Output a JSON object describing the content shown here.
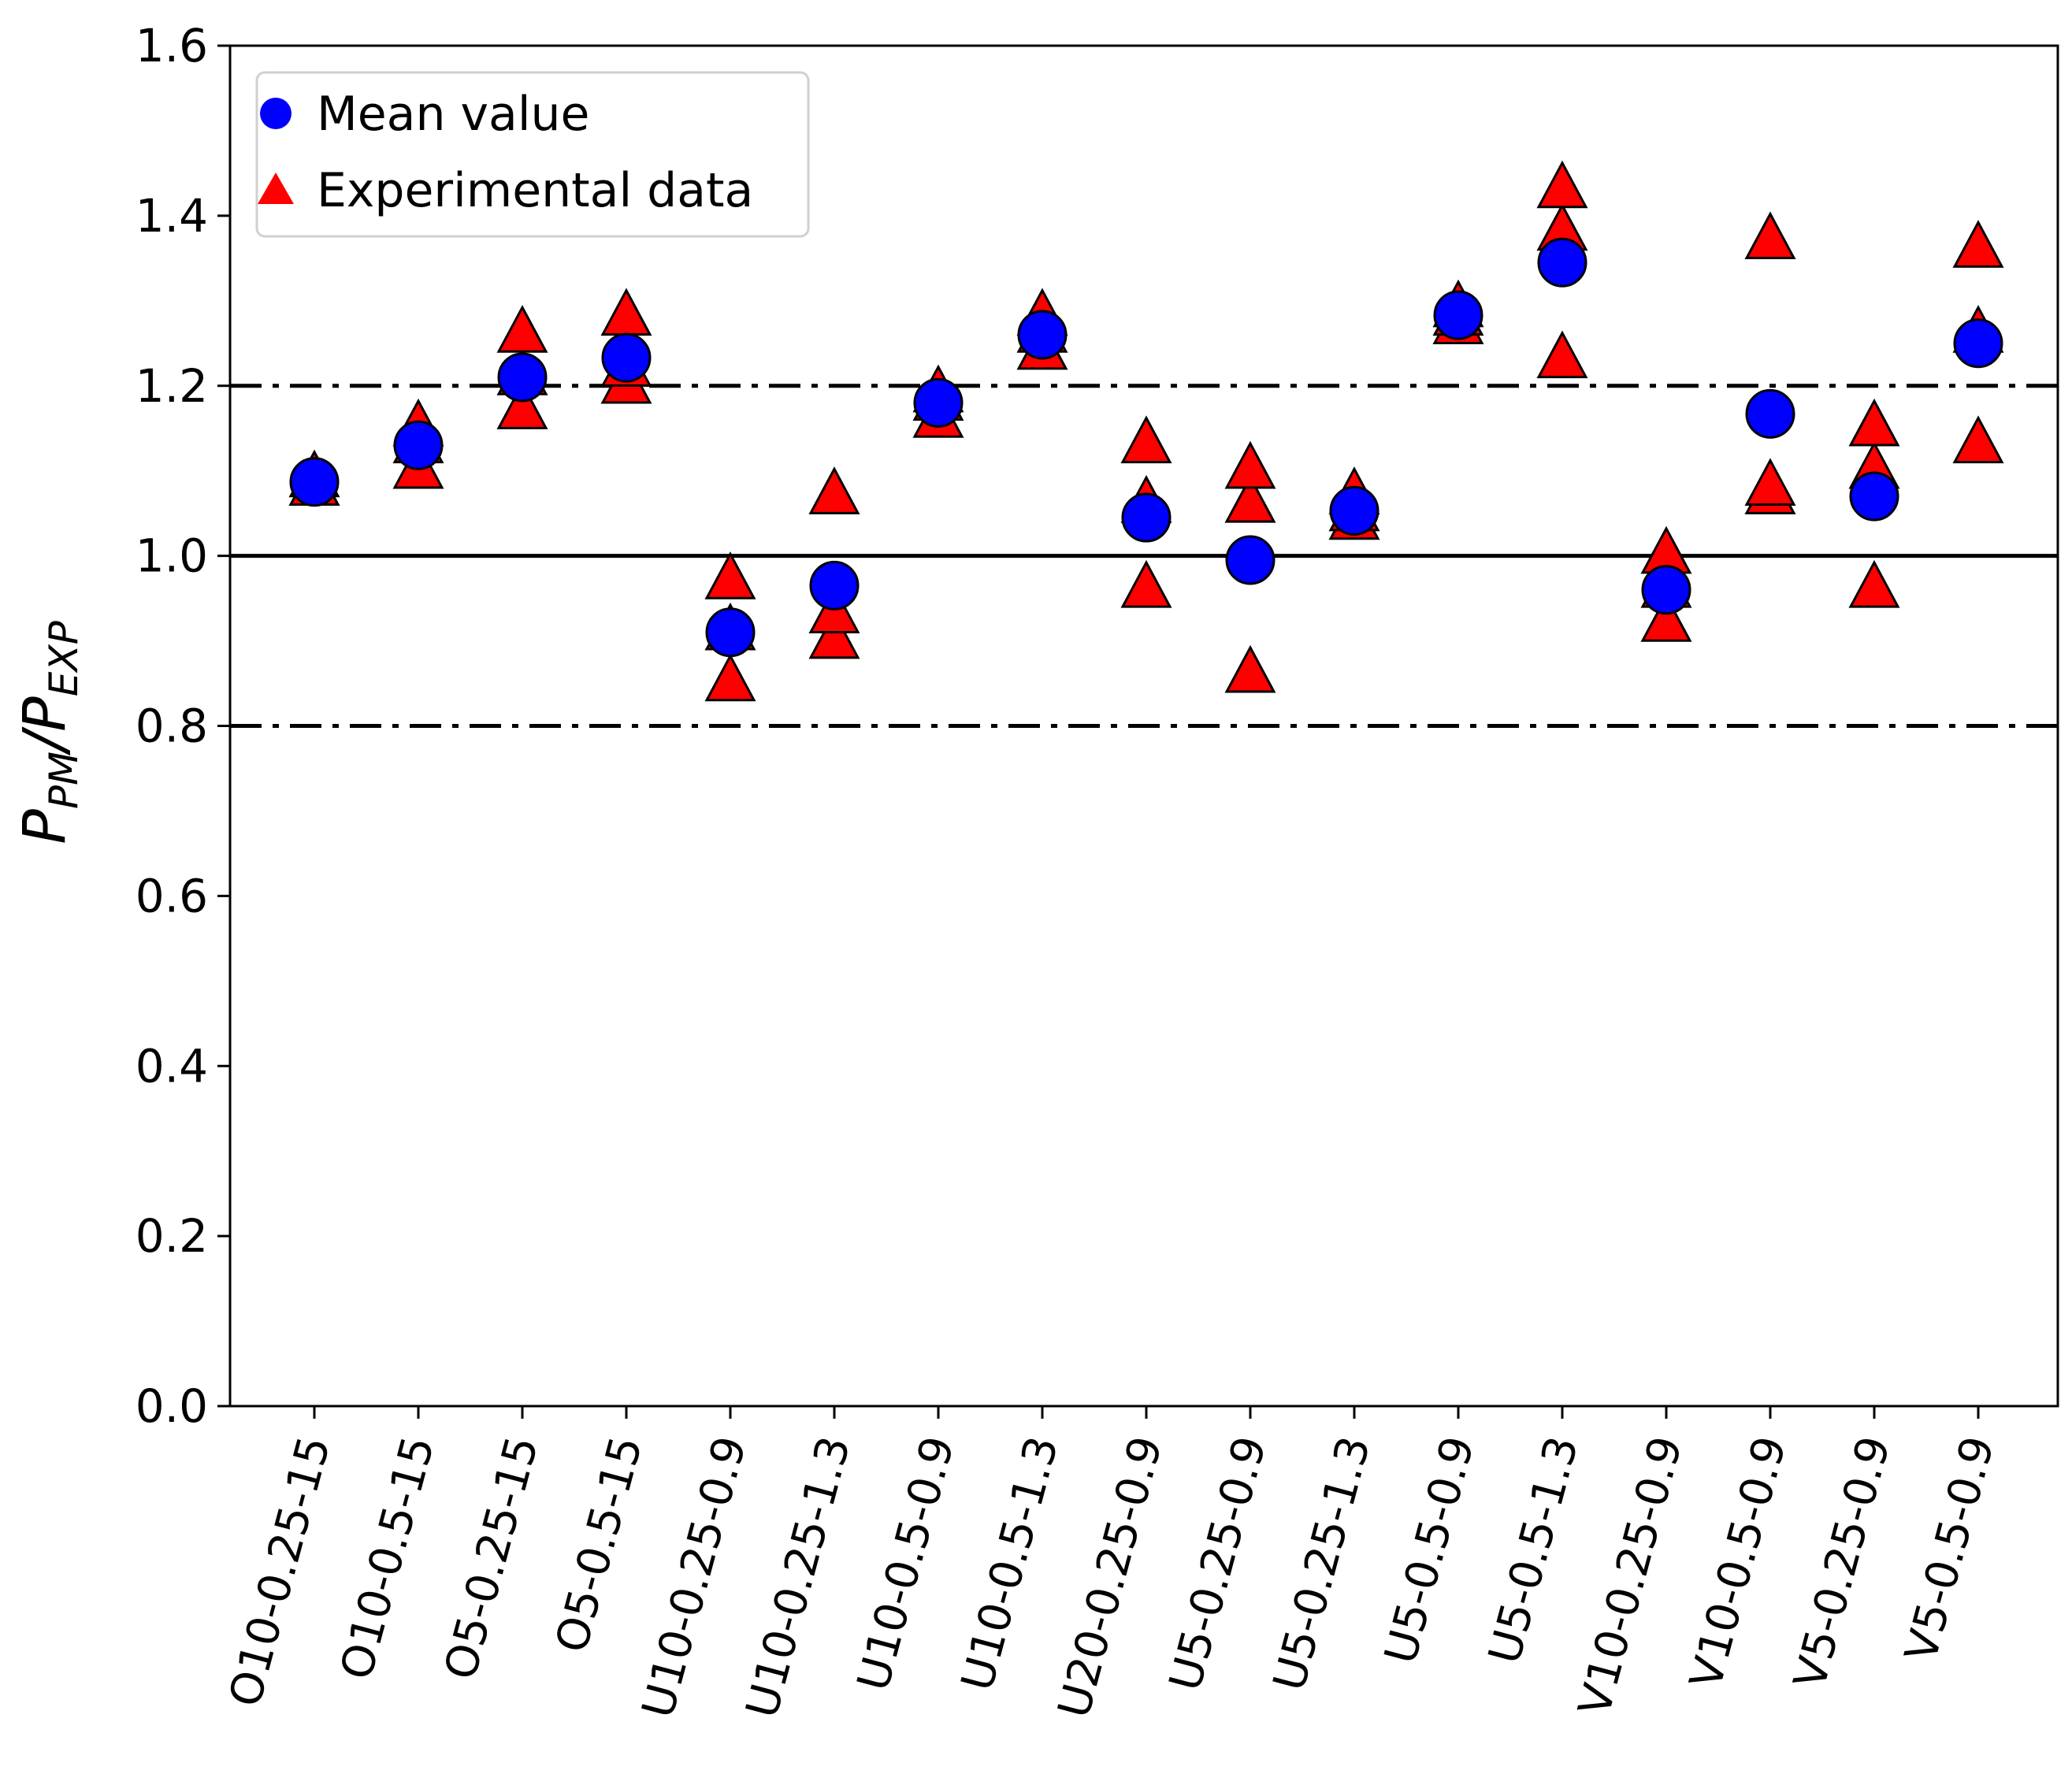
{
  "chart_data": {
    "type": "scatter",
    "title": "",
    "xlabel": "",
    "ylabel": {
      "base1": "P",
      "sub1": "PM",
      "sep": "/",
      "base2": "P",
      "sub2": "EXP"
    },
    "ylim": [
      0.0,
      1.6
    ],
    "yticks": [
      "0.0",
      "0.2",
      "0.4",
      "0.6",
      "0.8",
      "1.0",
      "1.2",
      "1.4",
      "1.6"
    ],
    "grid": false,
    "legend_position": "top-left",
    "categories": [
      "O10-0.25-15",
      "O10-0.5-15",
      "O5-0.25-15",
      "O5-0.5-15",
      "U10-0.25-0.9",
      "U10-0.25-1.3",
      "U10-0.5-0.9",
      "U10-0.5-1.3",
      "U20-0.25-0.9",
      "U5-0.25-0.9",
      "U5-0.25-1.3",
      "U5-0.5-0.9",
      "U5-0.5-1.3",
      "V10-0.25-0.9",
      "V10-0.5-0.9",
      "V5-0.25-0.9",
      "V5-0.5-0.9"
    ],
    "reference_lines": [
      {
        "y": 1.0,
        "style": "solid"
      },
      {
        "y": 1.2,
        "style": "dashdot"
      },
      {
        "y": 0.8,
        "style": "dashdot"
      }
    ],
    "series": [
      {
        "name": "Experimental data",
        "marker": "triangle",
        "color": "#ff0000",
        "values": [
          [
            1.08,
            1.08,
            1.09
          ],
          [
            1.1,
            1.13,
            1.15
          ],
          [
            1.17,
            1.21,
            1.26
          ],
          [
            1.2,
            1.22,
            1.28
          ],
          [
            0.85,
            0.91,
            0.97
          ],
          [
            0.9,
            0.93,
            1.07
          ],
          [
            1.16,
            1.18,
            1.19
          ],
          [
            1.24,
            1.26,
            1.28
          ],
          [
            0.96,
            1.06,
            1.13
          ],
          [
            0.86,
            1.06,
            1.1
          ],
          [
            1.04,
            1.05,
            1.07
          ],
          [
            1.27,
            1.28,
            1.29
          ],
          [
            1.23,
            1.38,
            1.43
          ],
          [
            0.92,
            0.96,
            1.0
          ],
          [
            1.07,
            1.08,
            1.37
          ],
          [
            0.96,
            1.1,
            1.15
          ],
          [
            1.13,
            1.26,
            1.36
          ]
        ]
      },
      {
        "name": "Mean value",
        "marker": "circle",
        "color": "#0000ff",
        "values": [
          1.087,
          1.13,
          1.21,
          1.233,
          0.91,
          0.965,
          1.18,
          1.26,
          1.045,
          0.995,
          1.053,
          1.283,
          1.345,
          0.96,
          1.167,
          1.07,
          1.25
        ]
      }
    ]
  }
}
